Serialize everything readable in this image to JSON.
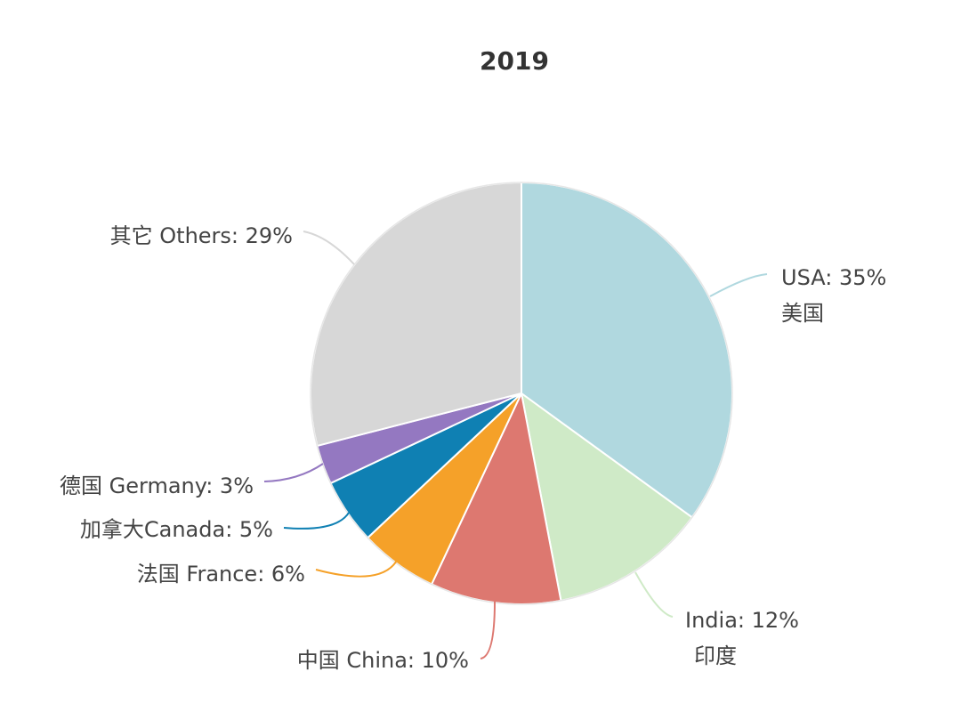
{
  "chart_data": {
    "type": "pie",
    "title": "2019",
    "slices": [
      {
        "label": "USA: 35%",
        "label_line2": "美国",
        "value": 35,
        "color": "#b0d8df"
      },
      {
        "label": "India: 12%",
        "label_line2": "印度",
        "value": 12,
        "color": "#cfeac7"
      },
      {
        "label": "中国 China: 10%",
        "label_line2": "",
        "value": 10,
        "color": "#dd7870"
      },
      {
        "label": "法国 France: 6%",
        "label_line2": "",
        "value": 6,
        "color": "#f5a129"
      },
      {
        "label": "加拿大Canada: 5%",
        "label_line2": "",
        "value": 5,
        "color": "#0f80b3"
      },
      {
        "label": "德国 Germany: 3%",
        "label_line2": "",
        "value": 3,
        "color": "#9478c1"
      },
      {
        "label": "其它 Others: 29%",
        "label_line2": "",
        "value": 29,
        "color": "#d7d7d7"
      }
    ]
  }
}
